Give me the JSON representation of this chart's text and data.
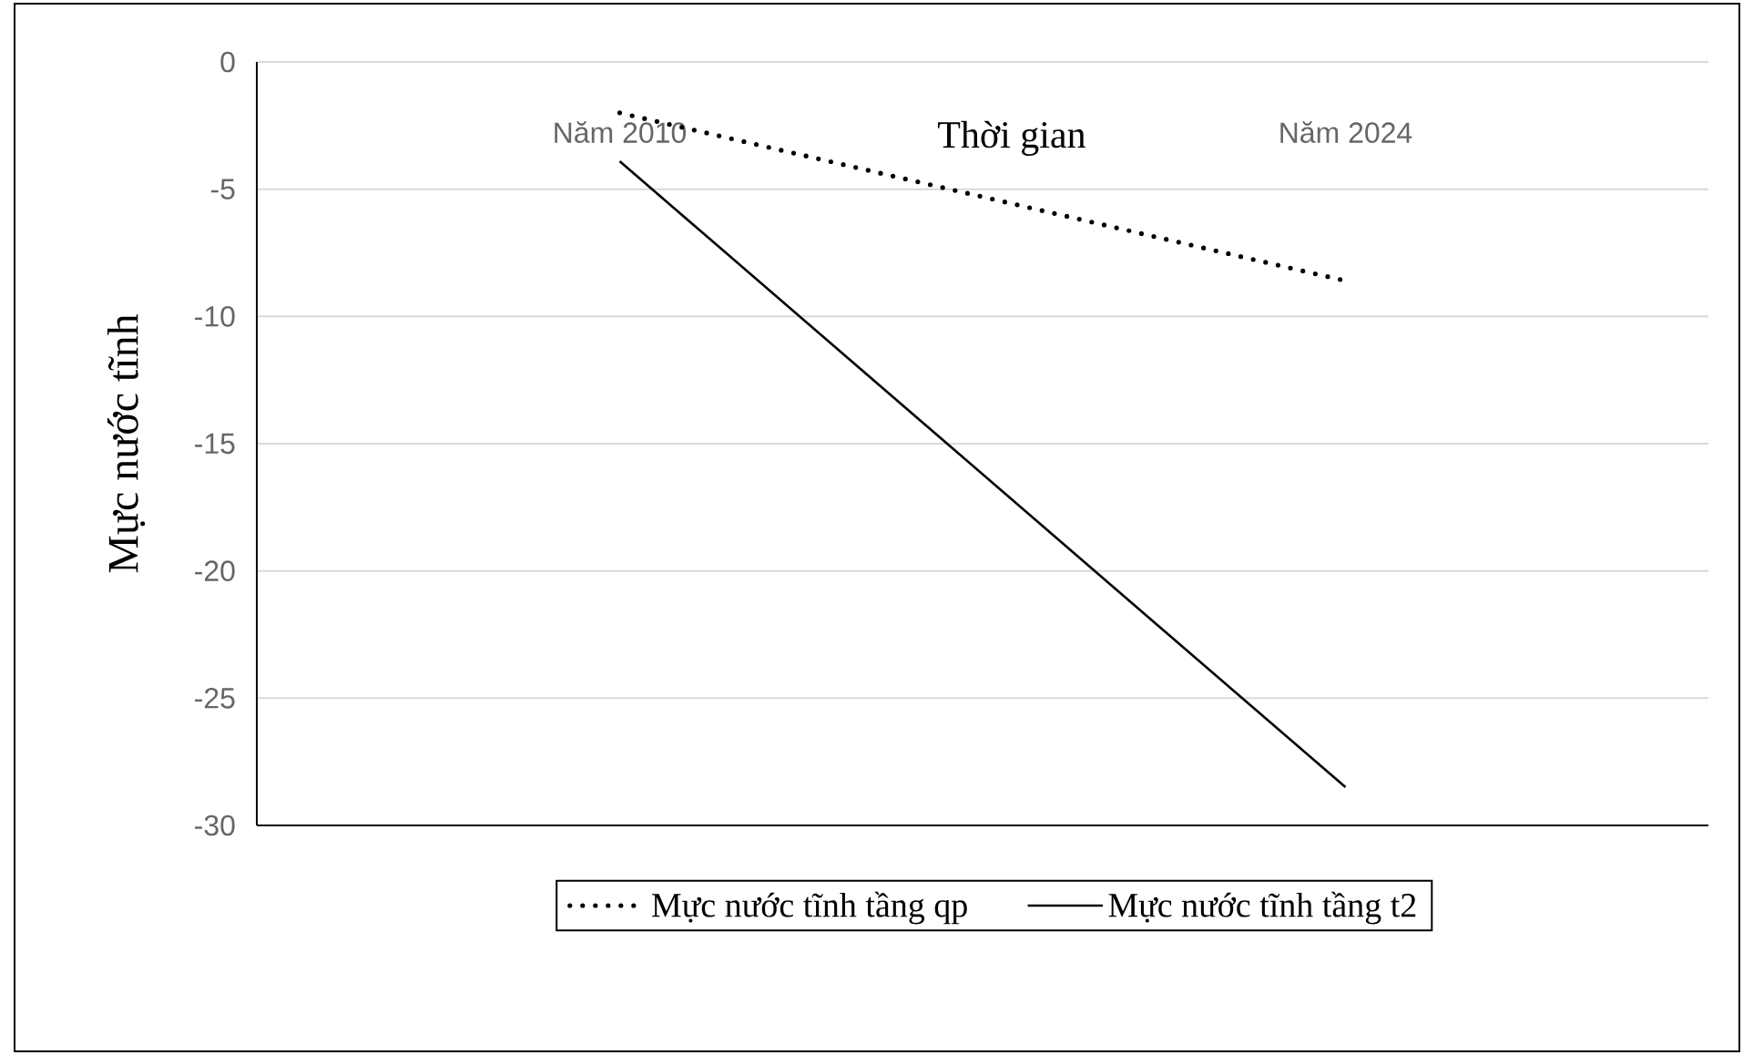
{
  "chart_data": {
    "type": "line",
    "xlabel": "Thời gian",
    "ylabel": "Mực nước tĩnh",
    "categories": [
      "Năm 2010",
      "Năm 2024"
    ],
    "series": [
      {
        "name": "Mực nước tĩnh tầng qp",
        "color": "#000000",
        "line_style": "dotted",
        "values": [
          -2.0,
          -8.6
        ]
      },
      {
        "name": "Mực nước tĩnh tầng t2",
        "color": "#000000",
        "line_style": "solid",
        "values": [
          -3.9,
          -28.5
        ]
      }
    ],
    "ylim": [
      -30,
      0
    ],
    "yticks": [
      0,
      -5,
      -10,
      -15,
      -20,
      -25,
      -30
    ],
    "grid": "y",
    "legend": "bottom"
  }
}
